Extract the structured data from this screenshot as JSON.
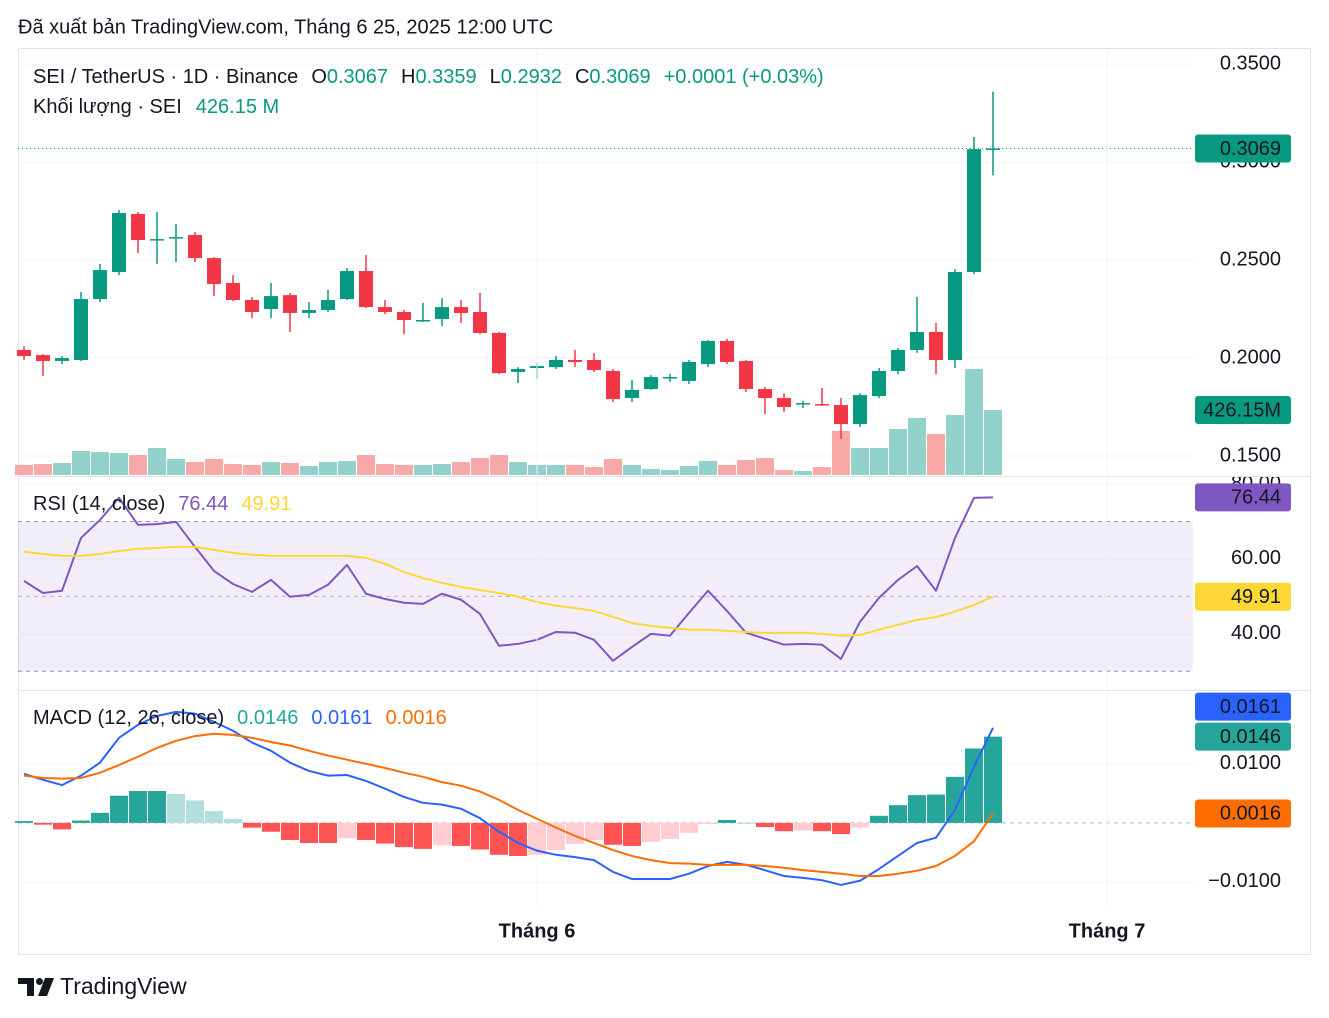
{
  "header": "Đã xuất bản TradingView.com, Tháng 6 25, 2025 12:00 UTC",
  "brand": "TradingView",
  "chart_data": [
    {
      "type": "candlestick",
      "title": "SEI / TetherUS · 1D · Binance",
      "ohlc_labels": [
        "O",
        "H",
        "L",
        "C"
      ],
      "change": "+0.0001 (+0.03%)",
      "up_color": "#089981",
      "down_color": "#f23645",
      "ylim": [
        0.1398,
        0.3582
      ],
      "yticks": [
        {
          "value": 0.15,
          "label": "0.1500"
        },
        {
          "value": 0.2,
          "label": "0.2000"
        },
        {
          "value": 0.25,
          "label": "0.2500"
        },
        {
          "value": 0.3,
          "label": "0.3000"
        },
        {
          "value": 0.35,
          "label": "0.3500"
        }
      ],
      "grid": true,
      "open": [
        0.2041,
        0.2015,
        0.1985,
        0.199,
        0.2301,
        0.2439,
        0.2735,
        0.2602,
        0.2612,
        0.2628,
        0.251,
        0.2383,
        0.2296,
        0.225,
        0.2321,
        0.223,
        0.2245,
        0.2301,
        0.2444,
        0.226,
        0.2235,
        0.2189,
        0.2199,
        0.226,
        0.2235,
        0.2128,
        0.1929,
        0.1949,
        0.1954,
        0.199,
        0.199,
        0.1934,
        0.1796,
        0.1842,
        0.1898,
        0.1883,
        0.1969,
        0.2087,
        0.1985,
        0.1842,
        0.1796,
        0.1765,
        0.1765,
        0.176,
        0.1663,
        0.1806,
        0.1934,
        0.2041,
        0.2133,
        0.199,
        0.2439,
        0.3067
      ],
      "high": [
        0.206,
        0.202,
        0.201,
        0.2337,
        0.248,
        0.2755,
        0.2745,
        0.2745,
        0.2684,
        0.2643,
        0.2515,
        0.2423,
        0.2311,
        0.2383,
        0.2332,
        0.2286,
        0.2347,
        0.2459,
        0.2526,
        0.2296,
        0.2245,
        0.2281,
        0.2306,
        0.2296,
        0.2332,
        0.2133,
        0.1954,
        0.1974,
        0.201,
        0.2041,
        0.2026,
        0.1944,
        0.1888,
        0.1913,
        0.1918,
        0.199,
        0.2092,
        0.2097,
        0.199,
        0.1852,
        0.1821,
        0.1781,
        0.1847,
        0.1796,
        0.1821,
        0.1949,
        0.2051,
        0.2311,
        0.2179,
        0.2454,
        0.3128,
        0.3359
      ],
      "low": [
        0.199,
        0.1908,
        0.197,
        0.1985,
        0.2286,
        0.2423,
        0.2536,
        0.248,
        0.249,
        0.249,
        0.2316,
        0.2291,
        0.2204,
        0.2204,
        0.2133,
        0.2204,
        0.2235,
        0.2296,
        0.2255,
        0.2224,
        0.2122,
        0.2184,
        0.2163,
        0.2179,
        0.2122,
        0.1918,
        0.1872,
        0.1893,
        0.1944,
        0.1954,
        0.1929,
        0.1776,
        0.1776,
        0.1837,
        0.1878,
        0.1867,
        0.1954,
        0.1969,
        0.1827,
        0.1714,
        0.1724,
        0.1745,
        0.1755,
        0.1587,
        0.1648,
        0.1796,
        0.1918,
        0.2026,
        0.1918,
        0.1949,
        0.2429,
        0.2932
      ],
      "close": [
        0.201,
        0.1985,
        0.2,
        0.2301,
        0.2449,
        0.274,
        0.2602,
        0.2607,
        0.2617,
        0.251,
        0.2378,
        0.2296,
        0.2235,
        0.2316,
        0.223,
        0.2245,
        0.2296,
        0.2444,
        0.226,
        0.2235,
        0.2194,
        0.2194,
        0.226,
        0.223,
        0.2128,
        0.1923,
        0.1944,
        0.1959,
        0.199,
        0.198,
        0.1939,
        0.1791,
        0.1837,
        0.1903,
        0.1903,
        0.198,
        0.2087,
        0.198,
        0.1842,
        0.1796,
        0.175,
        0.177,
        0.176,
        0.1663,
        0.1811,
        0.1934,
        0.2041,
        0.2133,
        0.199,
        0.2439,
        0.3066,
        0.3069
      ],
      "volume": {
        "name": "Khối lượng · SEI",
        "legend_value": "426.15 M",
        "tag_label": "426.15M",
        "up_color": "#92d2ca",
        "down_color": "#f7a9a7",
        "values": [
          66,
          72,
          79,
          157,
          151,
          144,
          131,
          177,
          105,
          85,
          105,
          72,
          66,
          85,
          79,
          59,
          85,
          92,
          131,
          72,
          66,
          66,
          72,
          85,
          111,
          131,
          85,
          66,
          66,
          66,
          52,
          105,
          66,
          39,
          33,
          59,
          92,
          66,
          98,
          111,
          33,
          26,
          52,
          289,
          177,
          177,
          302,
          374,
          269,
          393,
          695,
          426.15
        ]
      }
    },
    {
      "type": "line",
      "title": "RSI (14, close)",
      "ylim": [
        25,
        80
      ],
      "yticks": [
        {
          "value": 40,
          "label": "40.00"
        },
        {
          "value": 60,
          "label": "60.00"
        },
        {
          "value": 80,
          "label": "80.00"
        }
      ],
      "grid": true,
      "bands": [
        30,
        70
      ],
      "midline": 50,
      "band_color": "#7e57c2",
      "series": [
        {
          "color": "#7e57c2",
          "values": [
            54.1,
            50.9,
            51.5,
            65.6,
            70.4,
            76.3,
            69.1,
            69.3,
            69.9,
            63.2,
            56.8,
            53.3,
            51.2,
            54.4,
            49.9,
            50.4,
            53.1,
            58.4,
            50.7,
            49.3,
            48.3,
            48.0,
            50.7,
            49.1,
            45.3,
            36.8,
            37.3,
            38.4,
            40.5,
            40.3,
            38.4,
            32.8,
            36.5,
            40.0,
            39.5,
            45.6,
            51.5,
            46.1,
            40.3,
            38.7,
            37.1,
            37.3,
            37.1,
            33.3,
            43.2,
            49.6,
            54.4,
            58.1,
            51.5,
            65.6,
            76.3,
            76.44
          ]
        },
        {
          "color": "#fdd835",
          "values": [
            61.9,
            61.3,
            60.8,
            60.8,
            61.3,
            62.1,
            62.7,
            62.9,
            63.2,
            63.2,
            62.4,
            61.6,
            61.1,
            60.8,
            60.8,
            60.8,
            60.8,
            60.8,
            60.3,
            58.7,
            56.5,
            54.9,
            53.6,
            52.5,
            51.7,
            50.9,
            49.9,
            48.5,
            47.5,
            46.9,
            46.1,
            44.5,
            42.9,
            42.1,
            41.6,
            41.1,
            41.1,
            40.8,
            40.5,
            40.3,
            40.3,
            40.3,
            40.0,
            39.5,
            39.7,
            41.1,
            42.4,
            43.7,
            44.5,
            45.9,
            47.7,
            49.91
          ]
        }
      ]
    },
    {
      "type": "combo",
      "title": "MACD (12, 26, close)",
      "ylim": [
        -0.0139,
        0.0225
      ],
      "yticks": [
        {
          "value": -0.01,
          "label": "−0.0100"
        },
        {
          "value": 0.01,
          "label": "0.0100"
        }
      ],
      "grid": true,
      "midline": 0,
      "xticks": [
        {
          "value": 27,
          "label": "Tháng 6"
        },
        {
          "value": 57,
          "label": "Tháng 7"
        }
      ],
      "series": [
        {
          "type": "bar",
          "colors": [
            "#26a69a",
            "#b2dfdb",
            "#ff5252",
            "#ffcdd2"
          ],
          "values": [
            0.0003,
            -0.0003,
            -0.0011,
            0.0004,
            0.0017,
            0.0046,
            0.0054,
            0.0054,
            0.0049,
            0.0038,
            0.002,
            0.0007,
            -0.0008,
            -0.0015,
            -0.0029,
            -0.0034,
            -0.0034,
            -0.0026,
            -0.0029,
            -0.0035,
            -0.0041,
            -0.0044,
            -0.0038,
            -0.0039,
            -0.0045,
            -0.0054,
            -0.0056,
            -0.0054,
            -0.0046,
            -0.0036,
            -0.0029,
            -0.0037,
            -0.0039,
            -0.0032,
            -0.0027,
            -0.0017,
            -0.0002,
            0.0005,
            0.0,
            -0.0007,
            -0.0014,
            -0.0013,
            -0.0014,
            -0.0019,
            -0.0008,
            0.0012,
            0.003,
            0.0047,
            0.0048,
            0.0078,
            0.0126,
            0.0146
          ]
        },
        {
          "type": "line",
          "color": "#2962ff",
          "values": [
            0.0083,
            0.0073,
            0.0064,
            0.008,
            0.0102,
            0.0144,
            0.0166,
            0.0181,
            0.0188,
            0.0185,
            0.0171,
            0.0156,
            0.0136,
            0.0122,
            0.0102,
            0.0088,
            0.008,
            0.0081,
            0.0071,
            0.0058,
            0.0044,
            0.0034,
            0.0031,
            0.0024,
            0.0008,
            -0.0015,
            -0.0034,
            -0.0047,
            -0.0054,
            -0.0058,
            -0.0063,
            -0.0083,
            -0.0095,
            -0.0095,
            -0.0095,
            -0.0086,
            -0.0073,
            -0.0066,
            -0.0071,
            -0.008,
            -0.009,
            -0.0093,
            -0.0097,
            -0.0105,
            -0.0098,
            -0.0078,
            -0.0056,
            -0.0034,
            -0.0025,
            0.0022,
            0.0095,
            0.0161
          ]
        },
        {
          "type": "line",
          "color": "#ff6d00",
          "values": [
            0.008,
            0.0076,
            0.0075,
            0.0076,
            0.0085,
            0.0098,
            0.0112,
            0.0127,
            0.0139,
            0.0147,
            0.0151,
            0.0149,
            0.0144,
            0.0137,
            0.0131,
            0.0122,
            0.0114,
            0.0107,
            0.01,
            0.0093,
            0.0085,
            0.0078,
            0.0069,
            0.0063,
            0.0053,
            0.0039,
            0.0022,
            0.0007,
            -0.0008,
            -0.0022,
            -0.0034,
            -0.0046,
            -0.0056,
            -0.0063,
            -0.0068,
            -0.0069,
            -0.0071,
            -0.0071,
            -0.0071,
            -0.0073,
            -0.0076,
            -0.008,
            -0.0083,
            -0.0086,
            -0.009,
            -0.009,
            -0.0086,
            -0.0081,
            -0.0073,
            -0.0056,
            -0.0031,
            0.0016
          ]
        }
      ]
    }
  ]
}
